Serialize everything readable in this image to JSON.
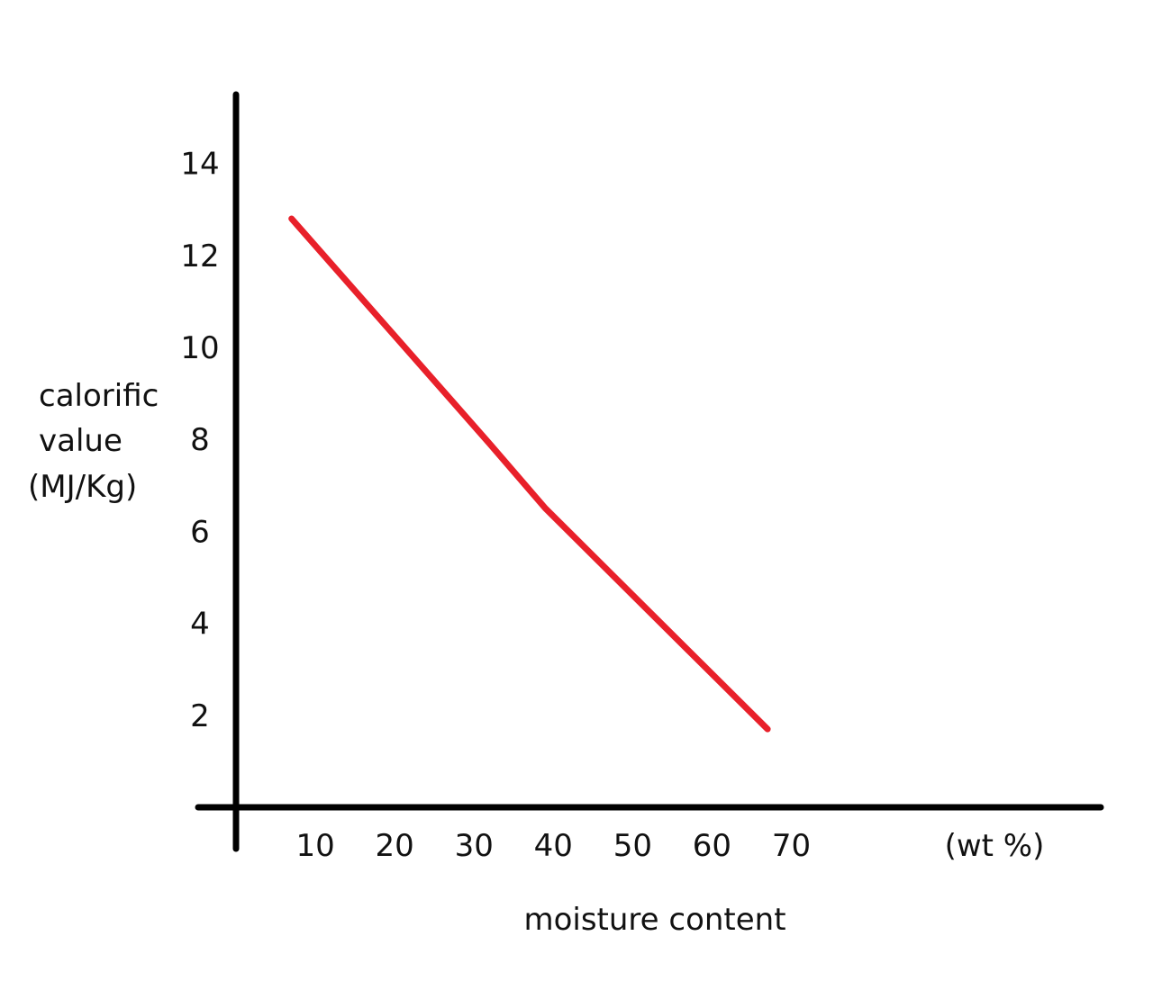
{
  "chart_data": {
    "type": "line",
    "title": "",
    "xlabel": "moisture content",
    "x_unit": "(wt %)",
    "ylabel_lines": [
      "calorific",
      "value",
      "(MJ/Kg)"
    ],
    "x_ticks": [
      10,
      20,
      30,
      40,
      50,
      60,
      70
    ],
    "y_ticks": [
      2,
      4,
      6,
      8,
      10,
      12,
      14
    ],
    "xlim": [
      0,
      109
    ],
    "ylim": [
      0,
      15.5
    ],
    "grid": false,
    "legend": "none",
    "series": [
      {
        "color": "#e8202a",
        "x": [
          7,
          32,
          39,
          67
        ],
        "y": [
          12.8,
          7.9,
          6.5,
          1.7
        ]
      }
    ]
  }
}
